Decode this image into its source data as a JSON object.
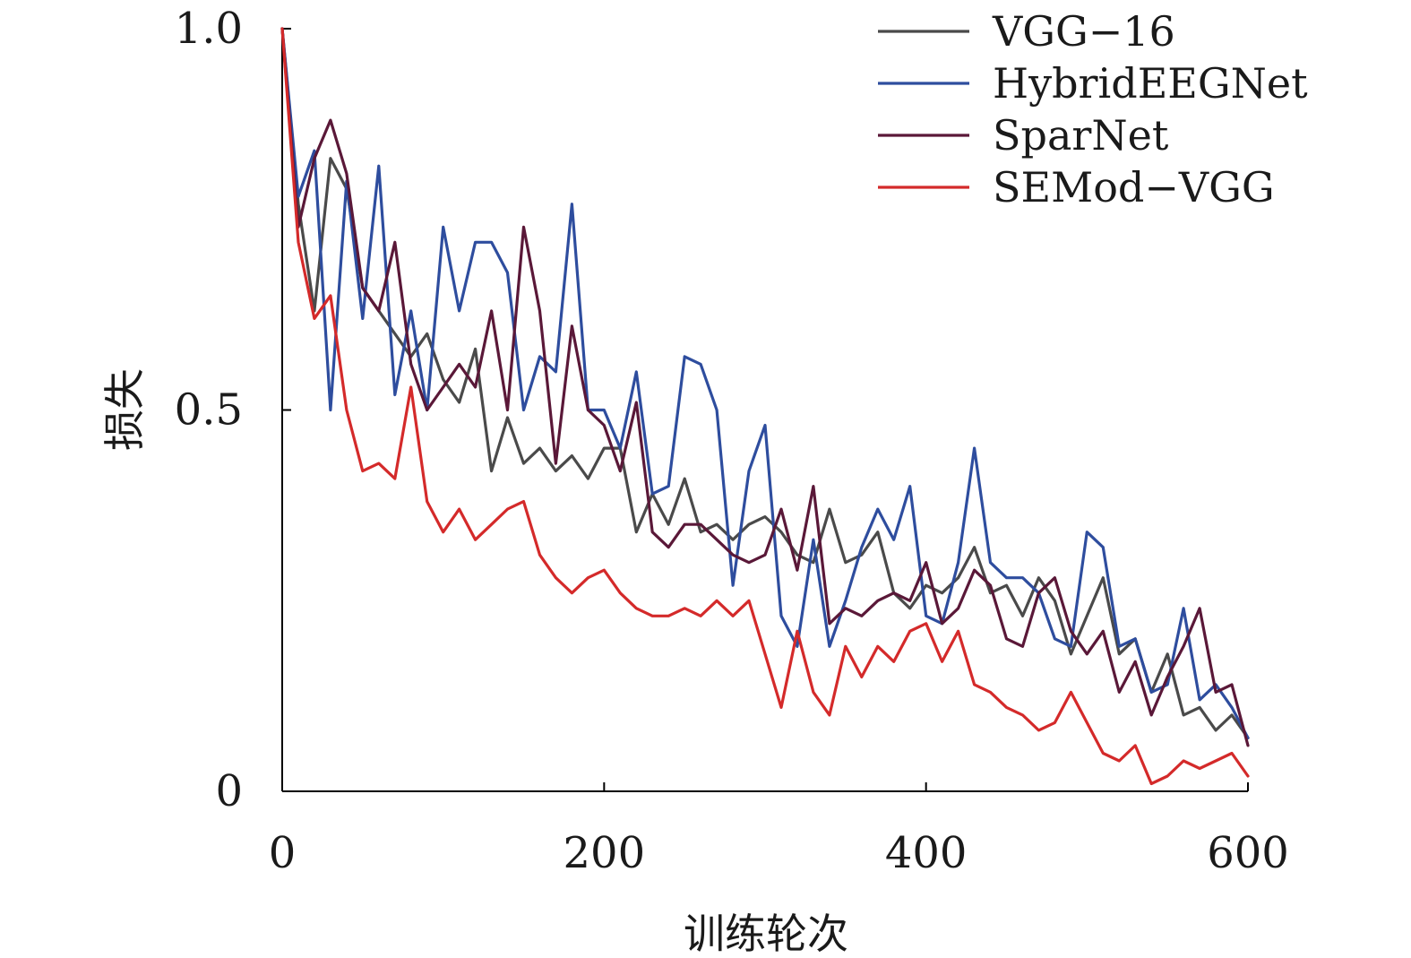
{
  "chart_data": {
    "type": "line",
    "xlabel": "训练轮次",
    "ylabel": "损失",
    "xlim": [
      0,
      600
    ],
    "ylim": [
      0,
      1.0
    ],
    "xticks": [
      0,
      200,
      400,
      600
    ],
    "xtick_labels": [
      "0",
      "200",
      "400",
      "600"
    ],
    "yticks": [
      0,
      0.5,
      1.0
    ],
    "ytick_labels": [
      "0",
      "0.5",
      "1.0"
    ],
    "grid": false,
    "legend_position": "top-right",
    "x": [
      0,
      10,
      20,
      30,
      40,
      50,
      60,
      70,
      80,
      90,
      100,
      110,
      120,
      130,
      140,
      150,
      160,
      170,
      180,
      190,
      200,
      210,
      220,
      230,
      240,
      250,
      260,
      270,
      280,
      290,
      300,
      310,
      320,
      330,
      340,
      350,
      360,
      370,
      380,
      390,
      400,
      410,
      420,
      430,
      440,
      450,
      460,
      470,
      480,
      490,
      500,
      510,
      520,
      530,
      540,
      550,
      560,
      570,
      580,
      590,
      600
    ],
    "series": [
      {
        "name": "VGG−16",
        "color": "#4a4a4a",
        "values": [
          1.0,
          0.77,
          0.63,
          0.83,
          0.79,
          0.66,
          0.63,
          0.6,
          0.57,
          0.6,
          0.54,
          0.51,
          0.58,
          0.42,
          0.49,
          0.43,
          0.45,
          0.42,
          0.44,
          0.41,
          0.45,
          0.45,
          0.34,
          0.39,
          0.35,
          0.41,
          0.34,
          0.35,
          0.33,
          0.35,
          0.36,
          0.34,
          0.31,
          0.3,
          0.37,
          0.3,
          0.31,
          0.34,
          0.26,
          0.24,
          0.27,
          0.26,
          0.28,
          0.32,
          0.26,
          0.27,
          0.23,
          0.28,
          0.25,
          0.18,
          0.23,
          0.28,
          0.18,
          0.2,
          0.13,
          0.18,
          0.1,
          0.11,
          0.08,
          0.1,
          0.07
        ]
      },
      {
        "name": "HybridEEGNet",
        "color": "#2e4d9e",
        "values": [
          1.0,
          0.78,
          0.84,
          0.5,
          0.8,
          0.62,
          0.82,
          0.52,
          0.63,
          0.5,
          0.74,
          0.63,
          0.72,
          0.72,
          0.68,
          0.5,
          0.57,
          0.55,
          0.77,
          0.5,
          0.5,
          0.45,
          0.55,
          0.39,
          0.4,
          0.57,
          0.56,
          0.5,
          0.27,
          0.42,
          0.48,
          0.23,
          0.19,
          0.33,
          0.19,
          0.25,
          0.32,
          0.37,
          0.33,
          0.4,
          0.23,
          0.22,
          0.3,
          0.45,
          0.3,
          0.28,
          0.28,
          0.26,
          0.2,
          0.19,
          0.34,
          0.32,
          0.19,
          0.2,
          0.13,
          0.14,
          0.24,
          0.12,
          0.14,
          0.11,
          0.07
        ]
      },
      {
        "name": "SparNet",
        "color": "#5a1838",
        "values": [
          1.0,
          0.74,
          0.83,
          0.88,
          0.81,
          0.66,
          0.63,
          0.72,
          0.56,
          0.5,
          0.53,
          0.56,
          0.53,
          0.63,
          0.5,
          0.74,
          0.63,
          0.43,
          0.61,
          0.5,
          0.48,
          0.42,
          0.51,
          0.34,
          0.32,
          0.35,
          0.35,
          0.33,
          0.31,
          0.3,
          0.31,
          0.37,
          0.29,
          0.4,
          0.22,
          0.24,
          0.23,
          0.25,
          0.26,
          0.25,
          0.3,
          0.22,
          0.24,
          0.29,
          0.27,
          0.2,
          0.19,
          0.26,
          0.28,
          0.21,
          0.18,
          0.21,
          0.13,
          0.17,
          0.1,
          0.15,
          0.19,
          0.24,
          0.13,
          0.14,
          0.06
        ]
      },
      {
        "name": "SEMod−VGG",
        "color": "#d42a2a",
        "values": [
          1.0,
          0.72,
          0.62,
          0.65,
          0.5,
          0.42,
          0.43,
          0.41,
          0.53,
          0.38,
          0.34,
          0.37,
          0.33,
          0.35,
          0.37,
          0.38,
          0.31,
          0.28,
          0.26,
          0.28,
          0.29,
          0.26,
          0.24,
          0.23,
          0.23,
          0.24,
          0.23,
          0.25,
          0.23,
          0.25,
          0.18,
          0.11,
          0.21,
          0.13,
          0.1,
          0.19,
          0.15,
          0.19,
          0.17,
          0.21,
          0.22,
          0.17,
          0.21,
          0.14,
          0.13,
          0.11,
          0.1,
          0.08,
          0.09,
          0.13,
          0.09,
          0.05,
          0.04,
          0.06,
          0.01,
          0.02,
          0.04,
          0.03,
          0.04,
          0.05,
          0.02
        ]
      }
    ]
  }
}
